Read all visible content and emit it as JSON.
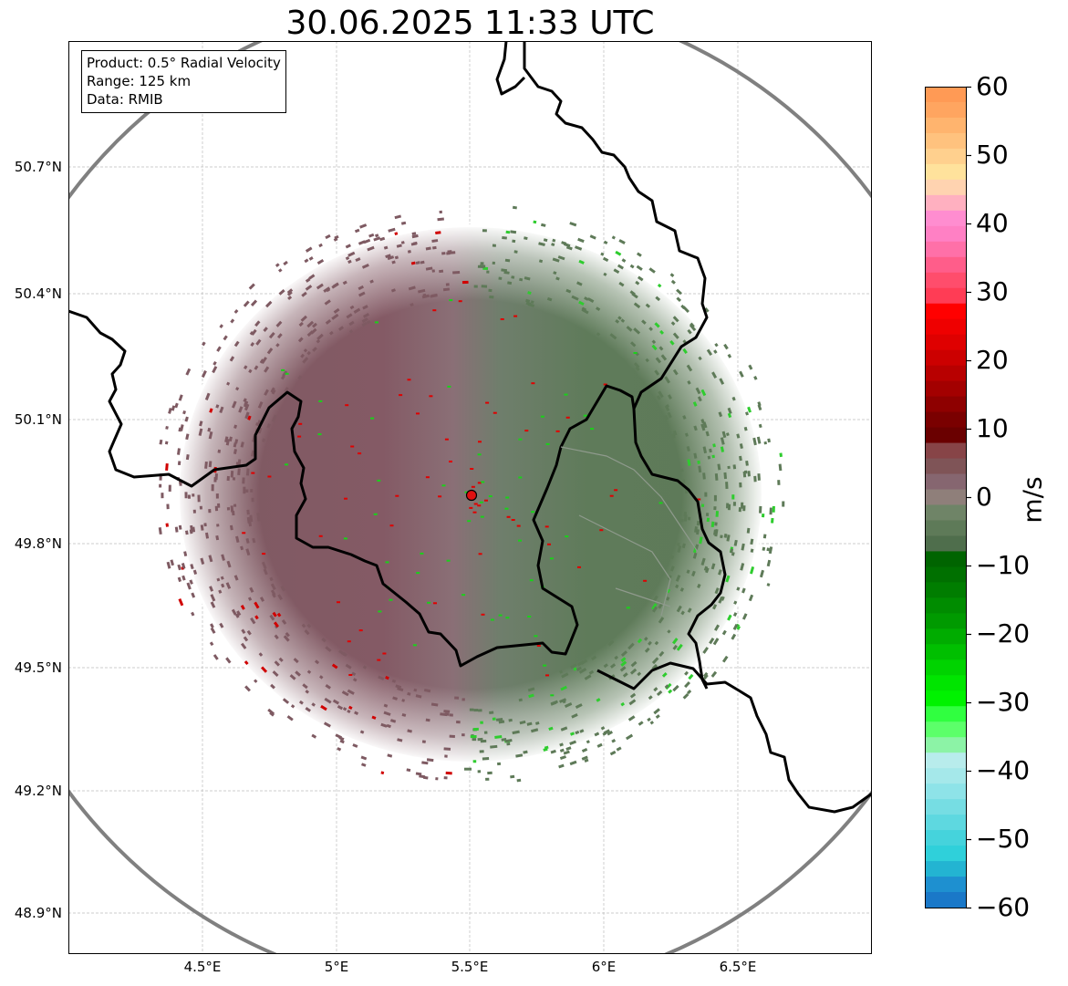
{
  "title": "30.06.2025 11:33 UTC",
  "info_box": {
    "product": "Product: 0.5° Radial Velocity",
    "range": "Range: 125 km",
    "data": "Data: RMIB"
  },
  "latitude_labels": [
    "50.7°N",
    "50.4°N",
    "50.1°N",
    "49.8°N",
    "49.5°N",
    "49.2°N",
    "48.9°N"
  ],
  "longitude_labels": [
    "4.5°E",
    "5°E",
    "5.5°E",
    "6°E",
    "6.5°E"
  ],
  "colorbar": {
    "unit": "m/s",
    "range": [
      -60,
      60
    ],
    "tick_labels": [
      "60",
      "50",
      "40",
      "30",
      "20",
      "10",
      "0",
      "−10",
      "−20",
      "−30",
      "−40",
      "−50",
      "−60"
    ]
  },
  "radar": {
    "site_marker_color": "#e01010",
    "range_ring_color": "#808080",
    "border_color": "#000000",
    "approaching_color": "#5d7a58",
    "receding_color": "#7e5a60"
  }
}
